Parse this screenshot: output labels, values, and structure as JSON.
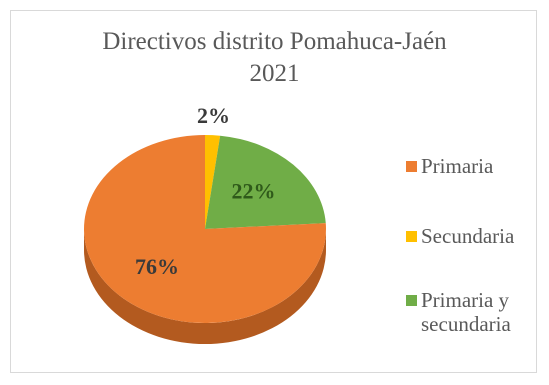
{
  "chart_data": {
    "type": "pie",
    "title_lines": [
      "Directivos distrito Pomahuca-Jaén",
      "2021"
    ],
    "categories": [
      "Primaria",
      "Secundaria",
      "Primaria y secundaria"
    ],
    "values": [
      76,
      2,
      22
    ],
    "data_labels": [
      "76%",
      "2%",
      "22%"
    ],
    "legend_labels": [
      "Primaria",
      "Secundaria",
      "Primaria y\nsecundaria"
    ],
    "colors": [
      "#ed7d31",
      "#ffc000",
      "#70ad47"
    ],
    "side_colors": [
      "#b35a1f",
      "#c49200",
      "#4f7a32"
    ],
    "label_colors": [
      "#3a3a3a",
      "#3a3a3a",
      "#2f5a1a"
    ],
    "legend_position": "right",
    "style": "3d-pie"
  }
}
